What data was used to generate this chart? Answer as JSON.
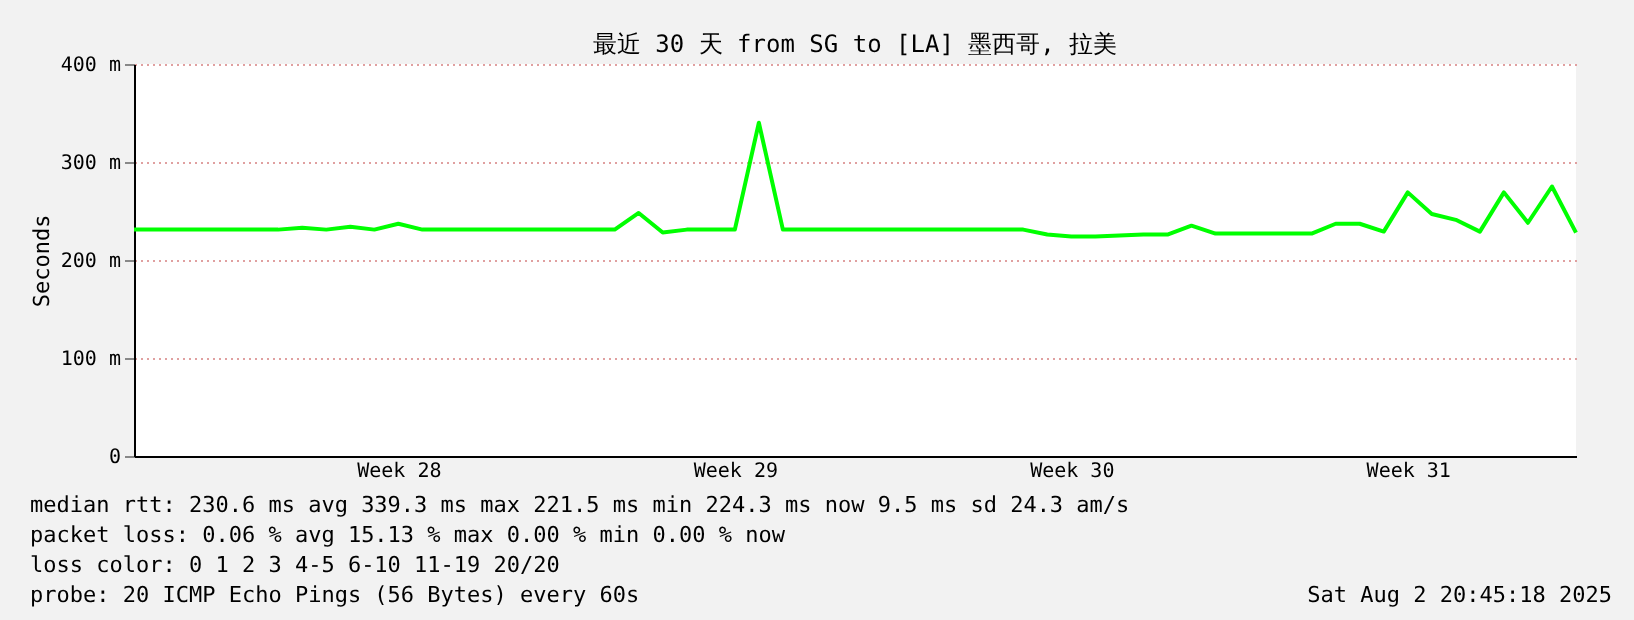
{
  "chart_data": {
    "type": "line",
    "title": "最近 30 天 from SG to [LA] 墨西哥, 拉美",
    "ylabel": "Seconds",
    "categories": [
      null,
      null,
      null,
      null,
      null,
      null,
      null,
      null,
      null,
      null,
      null,
      "Week 28",
      null,
      null,
      null,
      null,
      null,
      null,
      null,
      null,
      null,
      null,
      null,
      null,
      null,
      "Week 29",
      null,
      null,
      null,
      null,
      null,
      null,
      null,
      null,
      null,
      null,
      null,
      null,
      null,
      "Week 30",
      null,
      null,
      null,
      null,
      null,
      null,
      null,
      null,
      null,
      null,
      null,
      null,
      null,
      "Week 31",
      null,
      null,
      null,
      null,
      null,
      null,
      null
    ],
    "series": [
      {
        "color": "#00ff00",
        "values": [
          231,
          231,
          231,
          231,
          231,
          231,
          231,
          233,
          231,
          234,
          231,
          237,
          231,
          231,
          231,
          231,
          231,
          231,
          231,
          231,
          231,
          248,
          228,
          231,
          231,
          231,
          340,
          231,
          231,
          231,
          231,
          231,
          231,
          231,
          231,
          231,
          231,
          231,
          226,
          224,
          224,
          225,
          226,
          226,
          235,
          227,
          227,
          227,
          227,
          227,
          237,
          237,
          229,
          269,
          247,
          241,
          229,
          269,
          238,
          275,
          228
        ]
      }
    ],
    "ylim": [
      0,
      400
    ],
    "yticks": [
      {
        "value": 0,
        "label": "0"
      },
      {
        "value": 100,
        "label": "100 m"
      },
      {
        "value": 200,
        "label": "200 m"
      },
      {
        "value": 300,
        "label": "300 m"
      },
      {
        "value": 400,
        "label": "400 m"
      }
    ],
    "grid": "y",
    "marker": "none",
    "line_style": "solid",
    "legend": false,
    "annotations": [
      "median rtt:  230.6 ms avg  339.3 ms max  221.5 ms min  224.3 ms now  9.5 ms sd  24.3   am/s",
      "packet loss: 0.06 % avg  15.13 % max  0.00 % min  0.00 % now",
      "loss color:  0  1  2  3  4-5  6-10  11-19  20/20",
      "probe:       20 ICMP Echo Pings (56 Bytes) every 60s",
      "Sat Aug  2 20:45:18 2025"
    ]
  }
}
